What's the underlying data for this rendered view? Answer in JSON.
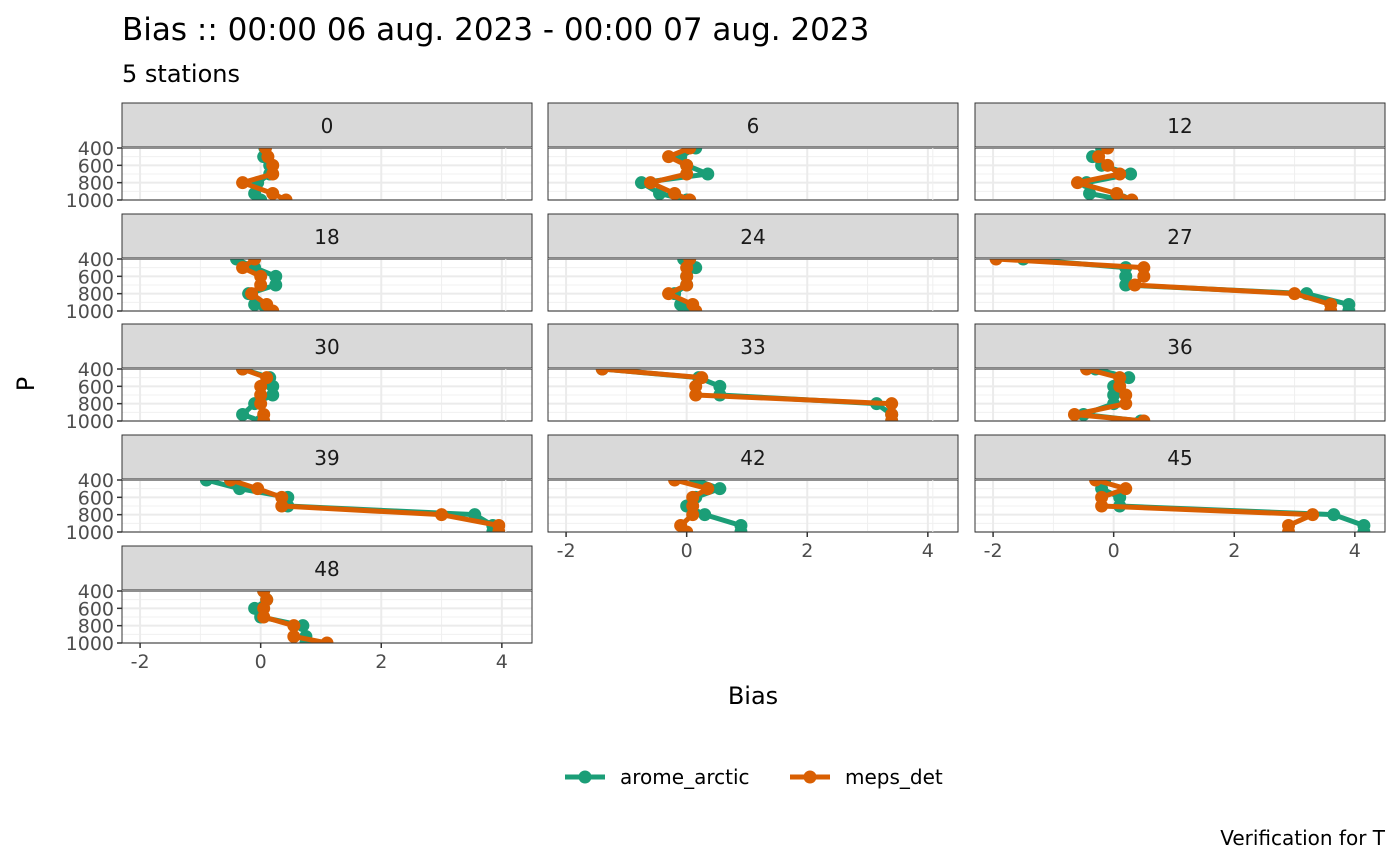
{
  "chart_data": {
    "type": "line",
    "title": "Bias :: 00:00 06 aug. 2023 - 00:00 07 aug. 2023",
    "subtitle": "5 stations",
    "xlabel": "Bias",
    "ylabel": "P",
    "caption": "Verification for T",
    "xlim": [
      -2.3,
      4.5
    ],
    "ylim": [
      1000,
      400
    ],
    "x_ticks": [
      "-2",
      "0",
      "2",
      "4"
    ],
    "y_ticks": [
      "400",
      "600",
      "800",
      "1000"
    ],
    "y_tick_values": [
      400,
      600,
      800,
      1000
    ],
    "grid": true,
    "legend_position": "bottom",
    "pressure_levels": [
      400,
      500,
      600,
      700,
      800,
      925,
      1000
    ],
    "series": [
      {
        "name": "arome_arctic",
        "color": "#1b9e77"
      },
      {
        "name": "meps_det",
        "color": "#d95f02"
      }
    ],
    "panels": [
      {
        "label": "0",
        "arome_arctic": [
          0.07,
          0.05,
          0.15,
          0.15,
          -0.05,
          -0.1,
          0.0
        ],
        "meps_det": [
          0.08,
          0.12,
          0.2,
          0.2,
          -0.3,
          0.2,
          0.42
        ]
      },
      {
        "label": "6",
        "arome_arctic": [
          0.15,
          -0.1,
          0.0,
          0.35,
          -0.75,
          -0.45,
          0.0
        ],
        "meps_det": [
          0.05,
          -0.3,
          0.0,
          0.0,
          -0.6,
          -0.2,
          0.05
        ]
      },
      {
        "label": "12",
        "arome_arctic": [
          -0.2,
          -0.35,
          -0.2,
          0.28,
          -0.45,
          -0.4,
          0.15
        ],
        "meps_det": [
          -0.1,
          -0.25,
          -0.1,
          0.1,
          -0.6,
          0.05,
          0.3
        ]
      },
      {
        "label": "18",
        "arome_arctic": [
          -0.4,
          -0.1,
          0.25,
          0.25,
          -0.2,
          -0.1,
          0.1
        ],
        "meps_det": [
          -0.1,
          -0.3,
          0.0,
          0.0,
          -0.15,
          0.1,
          0.2
        ]
      },
      {
        "label": "24",
        "arome_arctic": [
          -0.05,
          0.15,
          0.0,
          0.0,
          -0.2,
          -0.1,
          0.05
        ],
        "meps_det": [
          0.05,
          0.0,
          0.0,
          0.0,
          -0.3,
          0.1,
          0.15
        ]
      },
      {
        "label": "27",
        "arome_arctic": [
          -1.5,
          0.2,
          0.2,
          0.2,
          3.2,
          3.9,
          3.9
        ],
        "meps_det": [
          -1.95,
          0.5,
          0.5,
          0.35,
          3.0,
          3.6,
          3.6
        ]
      },
      {
        "label": "30",
        "arome_arctic": [
          -0.3,
          0.15,
          0.2,
          0.2,
          -0.1,
          -0.3,
          0.0
        ],
        "meps_det": [
          -0.3,
          0.1,
          0.0,
          0.0,
          0.0,
          0.05,
          0.05
        ]
      },
      {
        "label": "33",
        "arome_arctic": [
          -1.4,
          0.2,
          0.55,
          0.55,
          3.15,
          3.4,
          3.4
        ],
        "meps_det": [
          -1.4,
          0.25,
          0.15,
          0.15,
          3.4,
          3.4,
          3.4
        ]
      },
      {
        "label": "36",
        "arome_arctic": [
          -0.3,
          0.25,
          0.0,
          0.0,
          0.0,
          -0.5,
          0.45
        ],
        "meps_det": [
          -0.45,
          0.1,
          0.1,
          0.2,
          0.2,
          -0.65,
          0.5
        ]
      },
      {
        "label": "39",
        "arome_arctic": [
          -0.9,
          -0.35,
          0.45,
          0.45,
          3.55,
          3.85,
          3.85
        ],
        "meps_det": [
          -0.5,
          -0.05,
          0.35,
          0.35,
          3.0,
          3.95,
          3.95
        ]
      },
      {
        "label": "42",
        "arome_arctic": [
          0.15,
          0.55,
          0.15,
          0.0,
          0.3,
          0.9,
          0.9
        ],
        "meps_det": [
          -0.2,
          0.35,
          0.1,
          0.1,
          0.1,
          -0.1,
          0.0
        ]
      },
      {
        "label": "45",
        "arome_arctic": [
          -0.15,
          -0.2,
          0.1,
          0.1,
          3.65,
          4.15,
          4.15
        ],
        "meps_det": [
          -0.3,
          0.2,
          -0.2,
          -0.2,
          3.3,
          2.9,
          2.9
        ]
      },
      {
        "label": "48",
        "arome_arctic": [
          0.05,
          0.1,
          -0.1,
          0.0,
          0.7,
          0.75,
          0.75
        ],
        "meps_det": [
          0.05,
          0.1,
          0.05,
          0.05,
          0.55,
          0.55,
          1.1
        ]
      }
    ]
  }
}
